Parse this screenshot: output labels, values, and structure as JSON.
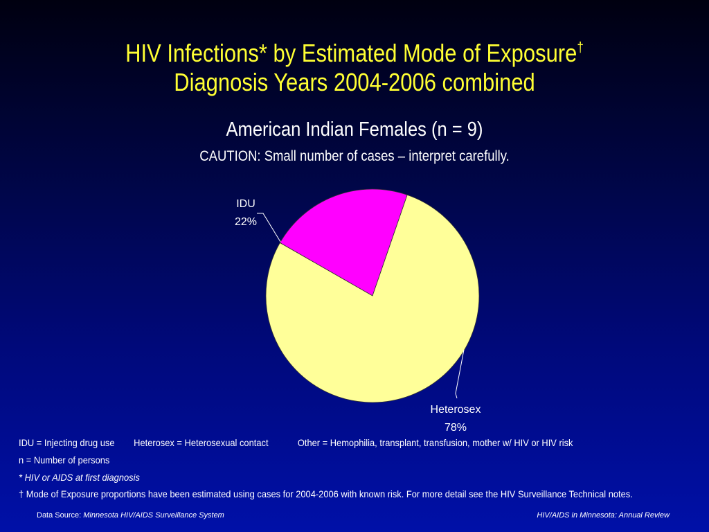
{
  "header": {
    "title_line1": "HIV Infections* by Estimated Mode of Exposure",
    "title_dagger": "†",
    "title_line2": "Diagnosis Years 2004-2006 combined"
  },
  "chart_data": {
    "type": "pie",
    "title": "American Indian Females (n = 9)",
    "subtitle": "CAUTION: Small number of cases – interpret carefully.",
    "slices": [
      {
        "label": "IDU",
        "value": 22,
        "value_label": "22%",
        "color": "#ff00ff"
      },
      {
        "label": "Heterosex",
        "value": 78,
        "value_label": "78%",
        "color": "#ffff99"
      }
    ]
  },
  "notes": {
    "legend_idu": "IDU = Injecting drug use",
    "legend_heterosex": "Heterosex = Heterosexual contact",
    "legend_other": "Other = Hemophilia, transplant, transfusion, mother w/ HIV or HIV risk",
    "n_def": "n = Number of persons",
    "asterisk_note": "* HIV or AIDS at first diagnosis",
    "dagger_note": "† Mode of Exposure proportions have been estimated using cases for 2004-2006 with known risk. For more detail see the HIV Surveillance Technical notes."
  },
  "footer": {
    "source_prefix": "Data Source: ",
    "source_name": "Minnesota HIV/AIDS Surveillance System",
    "report_name": "HIV/AIDS in Minnesota: Annual Review"
  },
  "colors": {
    "title": "#ffff33",
    "text": "#ffffff",
    "background_top": "#000010",
    "background_bottom": "#0010a8"
  }
}
